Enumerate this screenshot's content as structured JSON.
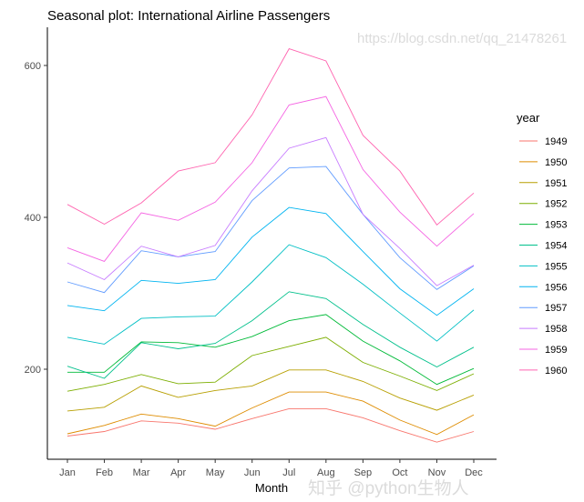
{
  "chart_data": {
    "type": "line",
    "title": "Seasonal plot: International Airline Passengers",
    "xlabel": "Month",
    "ylabel": "",
    "categories": [
      "Jan",
      "Feb",
      "Mar",
      "Apr",
      "May",
      "Jun",
      "Jul",
      "Aug",
      "Sep",
      "Oct",
      "Nov",
      "Dec"
    ],
    "yticks": [
      200,
      400,
      600
    ],
    "ylim": [
      80,
      650
    ],
    "grid": false,
    "legend": {
      "title": "year",
      "position": "right"
    },
    "series": [
      {
        "name": "1949",
        "color": "#F8766D",
        "values": [
          112,
          118,
          132,
          129,
          121,
          135,
          148,
          148,
          136,
          119,
          104,
          118
        ]
      },
      {
        "name": "1950",
        "color": "#DE8C00",
        "values": [
          115,
          126,
          141,
          135,
          125,
          149,
          170,
          170,
          158,
          133,
          114,
          140
        ]
      },
      {
        "name": "1951",
        "color": "#B79F00",
        "values": [
          145,
          150,
          178,
          163,
          172,
          178,
          199,
          199,
          184,
          162,
          146,
          166
        ]
      },
      {
        "name": "1952",
        "color": "#7CAE00",
        "values": [
          171,
          180,
          193,
          181,
          183,
          218,
          230,
          242,
          209,
          191,
          172,
          194
        ]
      },
      {
        "name": "1953",
        "color": "#00BA38",
        "values": [
          196,
          196,
          236,
          235,
          229,
          243,
          264,
          272,
          237,
          211,
          180,
          201
        ]
      },
      {
        "name": "1954",
        "color": "#00C08B",
        "values": [
          204,
          188,
          235,
          227,
          234,
          264,
          302,
          293,
          259,
          229,
          203,
          229
        ]
      },
      {
        "name": "1955",
        "color": "#00BFC4",
        "values": [
          242,
          233,
          267,
          269,
          270,
          315,
          364,
          347,
          312,
          274,
          237,
          278
        ]
      },
      {
        "name": "1956",
        "color": "#00B4F0",
        "values": [
          284,
          277,
          317,
          313,
          318,
          374,
          413,
          405,
          355,
          306,
          271,
          306
        ]
      },
      {
        "name": "1957",
        "color": "#619CFF",
        "values": [
          315,
          301,
          356,
          348,
          355,
          422,
          465,
          467,
          404,
          347,
          305,
          336
        ]
      },
      {
        "name": "1958",
        "color": "#C77CFF",
        "values": [
          340,
          318,
          362,
          348,
          363,
          435,
          491,
          505,
          404,
          359,
          310,
          337
        ]
      },
      {
        "name": "1959",
        "color": "#F564E3",
        "values": [
          360,
          342,
          406,
          396,
          420,
          472,
          548,
          559,
          463,
          407,
          362,
          405
        ]
      },
      {
        "name": "1960",
        "color": "#FF64B0",
        "values": [
          417,
          391,
          419,
          461,
          472,
          535,
          622,
          606,
          508,
          461,
          390,
          432
        ]
      }
    ]
  },
  "watermark": {
    "line1": "知乎 @python生物人",
    "line2": "https://blog.csdn.net/qq_21478261"
  }
}
